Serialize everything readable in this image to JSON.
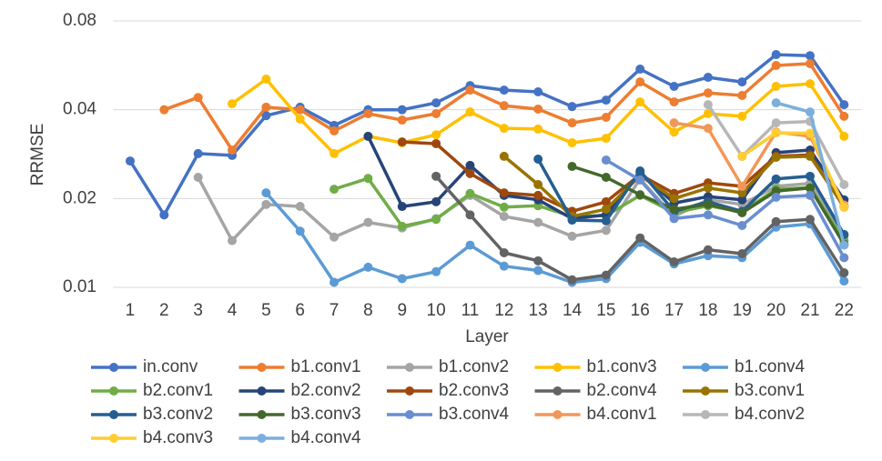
{
  "chart_data": {
    "type": "line",
    "y_label": "RRMSE",
    "x_label": "Layer",
    "categories": [
      "1",
      "2",
      "3",
      "4",
      "5",
      "6",
      "7",
      "8",
      "9",
      "10",
      "11",
      "12",
      "13",
      "14",
      "15",
      "16",
      "17",
      "18",
      "19",
      "20",
      "21",
      "22"
    ],
    "ylim": [
      0.01,
      0.08
    ],
    "yticks": [
      0.01,
      0.02,
      0.04,
      0.08
    ],
    "log_y": true,
    "grid": true,
    "legend": "bottom",
    "series": [
      {
        "name": "in.conv",
        "color": "#4472c4",
        "values": [
          0.0268,
          0.0176,
          0.0284,
          0.028,
          0.0382,
          0.0408,
          0.0354,
          0.04,
          0.04,
          0.0422,
          0.0483,
          0.0466,
          0.046,
          0.041,
          0.0431,
          0.0549,
          0.048,
          0.0515,
          0.0497,
          0.0615,
          0.061,
          0.0416
        ]
      },
      {
        "name": "b1.conv1",
        "color": "#ed7d31",
        "values": [
          null,
          0.04,
          0.044,
          0.0292,
          0.0408,
          0.04,
          0.0339,
          0.0388,
          0.0369,
          0.0388,
          0.0466,
          0.0413,
          0.0402,
          0.0361,
          0.0377,
          0.0497,
          0.0425,
          0.0456,
          0.0447,
          0.0565,
          0.0573,
          0.038
        ]
      },
      {
        "name": "b1.conv2",
        "color": "#a5a5a5",
        "values": [
          null,
          null,
          0.0236,
          0.0144,
          0.0191,
          0.0188,
          0.0148,
          0.0166,
          0.0159,
          0.0171,
          0.0205,
          0.0174,
          0.0166,
          0.0149,
          0.0156,
          0.0233,
          0.0174,
          0.0198,
          0.0191,
          0.022,
          0.0225,
          0.0149
        ]
      },
      {
        "name": "b1.conv3",
        "color": "#ffc000",
        "values": [
          null,
          null,
          null,
          0.0419,
          0.0508,
          0.0372,
          0.0284,
          0.0325,
          0.0309,
          0.0329,
          0.0393,
          0.0346,
          0.0344,
          0.0309,
          0.032,
          0.0425,
          0.0336,
          0.0388,
          0.038,
          0.048,
          0.049,
          0.0325
        ]
      },
      {
        "name": "b1.conv4",
        "color": "#5b9bd5",
        "values": [
          null,
          null,
          null,
          null,
          0.0209,
          0.0155,
          0.0104,
          0.0117,
          0.0107,
          0.0113,
          0.0139,
          0.0118,
          0.0114,
          0.0104,
          0.0107,
          0.0142,
          0.012,
          0.0128,
          0.0126,
          0.016,
          0.0164,
          0.0105
        ]
      },
      {
        "name": "b2.conv1",
        "color": "#70ad47",
        "values": [
          null,
          null,
          null,
          null,
          null,
          null,
          0.0215,
          0.0234,
          0.0161,
          0.017,
          0.0208,
          0.0187,
          0.0189,
          0.0174,
          0.0175,
          0.0205,
          0.0179,
          0.0189,
          0.018,
          0.0215,
          0.0218,
          0.0144
        ]
      },
      {
        "name": "b2.conv2",
        "color": "#264478",
        "values": [
          null,
          null,
          null,
          null,
          null,
          null,
          null,
          0.0325,
          0.0188,
          0.0195,
          0.0259,
          0.0205,
          0.0198,
          0.0171,
          0.0176,
          0.0245,
          0.0193,
          0.0203,
          0.0198,
          0.0286,
          0.0292,
          0.0198
        ]
      },
      {
        "name": "b2.conv3",
        "color": "#9e480e",
        "values": [
          null,
          null,
          null,
          null,
          null,
          null,
          null,
          null,
          0.0311,
          0.0307,
          0.0243,
          0.0209,
          0.0205,
          0.0181,
          0.0195,
          0.0241,
          0.0208,
          0.0226,
          0.022,
          0.0278,
          0.0281,
          0.0187
        ]
      },
      {
        "name": "b2.conv4",
        "color": "#636363",
        "values": [
          null,
          null,
          null,
          null,
          null,
          null,
          null,
          null,
          null,
          0.0238,
          0.0176,
          0.0131,
          0.0123,
          0.0106,
          0.011,
          0.0147,
          0.0122,
          0.0134,
          0.013,
          0.0167,
          0.017,
          0.0112
        ]
      },
      {
        "name": "b3.conv1",
        "color": "#997300",
        "values": [
          null,
          null,
          null,
          null,
          null,
          null,
          null,
          null,
          null,
          null,
          null,
          0.0278,
          0.0223,
          0.0174,
          0.0184,
          0.0239,
          0.02,
          0.0217,
          0.0209,
          0.0276,
          0.0278,
          0.0188
        ]
      },
      {
        "name": "b3.conv2",
        "color": "#255e91",
        "values": [
          null,
          null,
          null,
          null,
          null,
          null,
          null,
          null,
          null,
          null,
          null,
          null,
          0.0272,
          0.0169,
          0.0168,
          0.0248,
          0.0181,
          0.0195,
          0.0181,
          0.0233,
          0.0238,
          0.0151
        ]
      },
      {
        "name": "b3.conv3",
        "color": "#43682b",
        "values": [
          null,
          null,
          null,
          null,
          null,
          null,
          null,
          null,
          null,
          null,
          null,
          null,
          null,
          0.0257,
          0.0236,
          0.0206,
          0.0184,
          0.0191,
          0.0179,
          0.0212,
          0.0217,
          0.014
        ]
      },
      {
        "name": "b3.conv4",
        "color": "#698ed0",
        "values": [
          null,
          null,
          null,
          null,
          null,
          null,
          null,
          null,
          null,
          null,
          null,
          null,
          null,
          null,
          0.027,
          0.0231,
          0.0171,
          0.0176,
          0.0162,
          0.0202,
          0.0205,
          0.0126
        ]
      },
      {
        "name": "b4.conv1",
        "color": "#f1975a",
        "values": [
          null,
          null,
          null,
          null,
          null,
          null,
          null,
          null,
          null,
          null,
          null,
          null,
          null,
          null,
          null,
          null,
          0.0361,
          0.0346,
          0.022,
          0.0336,
          0.0325,
          0.019
        ]
      },
      {
        "name": "b4.conv2",
        "color": "#b7b7b7",
        "values": [
          null,
          null,
          null,
          null,
          null,
          null,
          null,
          null,
          null,
          null,
          null,
          null,
          null,
          null,
          null,
          null,
          null,
          0.0416,
          0.0278,
          0.0361,
          0.0365,
          0.0223
        ]
      },
      {
        "name": "b4.conv3",
        "color": "#ffcd33",
        "values": [
          null,
          null,
          null,
          null,
          null,
          null,
          null,
          null,
          null,
          null,
          null,
          null,
          null,
          null,
          null,
          null,
          null,
          null,
          0.0278,
          0.0334,
          0.0333,
          0.0187
        ]
      },
      {
        "name": "b4.conv4",
        "color": "#7cafdd",
        "values": [
          null,
          null,
          null,
          null,
          null,
          null,
          null,
          null,
          null,
          null,
          null,
          null,
          null,
          null,
          null,
          null,
          null,
          null,
          null,
          0.0422,
          0.0393,
          0.0139
        ]
      }
    ]
  }
}
